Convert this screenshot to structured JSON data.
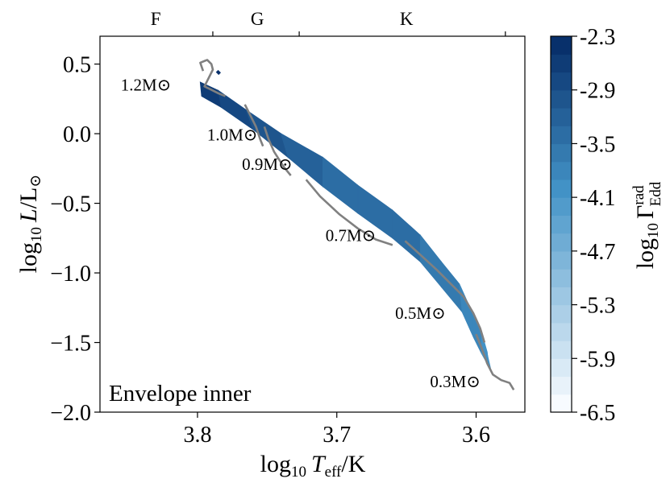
{
  "chart_data": {
    "type": "heatmap",
    "annotation": "Envelope inner",
    "xlabel_main": "log",
    "xlabel_sub": "10",
    "xlabel_var": "T",
    "xlabel_var_sub": "eff",
    "xlabel_unit": "/K",
    "ylabel_main": "log",
    "ylabel_sub": "10",
    "ylabel_var": "L",
    "ylabel_unit": "/L",
    "ylabel_sym": "⊙",
    "xlim": [
      3.87,
      3.565
    ],
    "ylim": [
      -2.0,
      0.7
    ],
    "x_axis_reversed": true,
    "x_ticks": [
      {
        "value": 3.8,
        "label": "3.8"
      },
      {
        "value": 3.7,
        "label": "3.7"
      },
      {
        "value": 3.6,
        "label": "3.6"
      }
    ],
    "y_ticks": [
      {
        "value": 0.5,
        "label": "0.5"
      },
      {
        "value": 0.0,
        "label": "0.0"
      },
      {
        "value": -0.5,
        "label": "−0.5"
      },
      {
        "value": -1.0,
        "label": "−1.0"
      },
      {
        "value": -1.5,
        "label": "−1.5"
      },
      {
        "value": -2.0,
        "label": "−2.0"
      }
    ],
    "top_axis": {
      "boundaries": [
        3.789,
        3.727,
        3.579
      ],
      "classes": [
        {
          "label": "F",
          "x": 3.83
        },
        {
          "label": "G",
          "x": 3.757
        },
        {
          "label": "K",
          "x": 3.65
        }
      ]
    },
    "colorbar": {
      "label_main": "log",
      "label_sub": "10",
      "label_var": "Γ",
      "label_sup": "rad",
      "label_sub2": "Edd",
      "range": [
        -6.5,
        -2.3
      ],
      "levels": 21,
      "ticks": [
        {
          "value": -2.3,
          "label": "-2.3"
        },
        {
          "value": -2.9,
          "label": "-2.9"
        },
        {
          "value": -3.5,
          "label": "-3.5"
        },
        {
          "value": -4.1,
          "label": "-4.1"
        },
        {
          "value": -4.7,
          "label": "-4.7"
        },
        {
          "value": -5.3,
          "label": "-5.3"
        },
        {
          "value": -5.9,
          "label": "-5.9"
        },
        {
          "value": -6.5,
          "label": "-6.5"
        }
      ],
      "cmap_low": "#f7fbff",
      "cmap_high": "#08306b"
    },
    "track_color": "#808080",
    "tracks": [
      {
        "label": "1.2M⊙",
        "mass": "1.2",
        "label_x": 3.837,
        "label_y": 0.31,
        "points": [
          [
            3.796,
            0.45
          ],
          [
            3.798,
            0.51
          ],
          [
            3.793,
            0.53
          ],
          [
            3.79,
            0.5
          ],
          [
            3.789,
            0.46
          ],
          [
            3.795,
            0.34
          ],
          [
            3.791,
            0.32
          ],
          [
            3.785,
            0.29
          ],
          [
            3.78,
            0.27
          ]
        ]
      },
      {
        "label": "1.0M⊙",
        "mass": "1.0",
        "label_x": 3.775,
        "label_y": -0.05,
        "points": [
          [
            3.766,
            0.21
          ],
          [
            3.763,
            0.15
          ],
          [
            3.758,
            0.05
          ],
          [
            3.755,
            -0.04
          ],
          [
            3.753,
            -0.09
          ]
        ]
      },
      {
        "label": "0.9M⊙",
        "mass": "0.9",
        "label_x": 3.75,
        "label_y": -0.26,
        "points": [
          [
            3.752,
            0.05
          ],
          [
            3.749,
            -0.04
          ],
          [
            3.745,
            -0.13
          ],
          [
            3.738,
            -0.24
          ],
          [
            3.733,
            -0.3
          ]
        ]
      },
      {
        "label": "0.7M⊙",
        "mass": "0.7",
        "label_x": 3.69,
        "label_y": -0.77,
        "points": [
          [
            3.722,
            -0.33
          ],
          [
            3.712,
            -0.45
          ],
          [
            3.698,
            -0.58
          ],
          [
            3.685,
            -0.68
          ],
          [
            3.672,
            -0.76
          ],
          [
            3.66,
            -0.8
          ]
        ]
      },
      {
        "label": "0.5M⊙",
        "mass": "0.5",
        "label_x": 3.64,
        "label_y": -1.33,
        "points": [
          [
            3.651,
            -0.77
          ],
          [
            3.64,
            -0.87
          ],
          [
            3.628,
            -0.98
          ],
          [
            3.618,
            -1.08
          ],
          [
            3.609,
            -1.17
          ],
          [
            3.602,
            -1.29
          ],
          [
            3.597,
            -1.4
          ],
          [
            3.594,
            -1.5
          ]
        ]
      },
      {
        "label": "0.3M⊙",
        "mass": "0.3",
        "label_x": 3.615,
        "label_y": -1.82,
        "points": [
          [
            3.6,
            -1.44
          ],
          [
            3.596,
            -1.54
          ],
          [
            3.592,
            -1.65
          ],
          [
            3.588,
            -1.73
          ],
          [
            3.582,
            -1.77
          ],
          [
            3.576,
            -1.79
          ],
          [
            3.573,
            -1.84
          ]
        ]
      }
    ],
    "band": {
      "upper": [
        [
          3.798,
          0.37
        ],
        [
          3.785,
          0.31
        ],
        [
          3.765,
          0.17
        ],
        [
          3.74,
          0.0
        ],
        [
          3.71,
          -0.17
        ],
        [
          3.685,
          -0.37
        ],
        [
          3.66,
          -0.55
        ],
        [
          3.64,
          -0.73
        ],
        [
          3.625,
          -0.92
        ],
        [
          3.612,
          -1.08
        ],
        [
          3.603,
          -1.28
        ],
        [
          3.596,
          -1.43
        ],
        [
          3.592,
          -1.57
        ],
        [
          3.589,
          -1.7
        ]
      ],
      "lower": [
        [
          3.797,
          0.27
        ],
        [
          3.783,
          0.19
        ],
        [
          3.76,
          0.03
        ],
        [
          3.735,
          -0.17
        ],
        [
          3.71,
          -0.38
        ],
        [
          3.685,
          -0.57
        ],
        [
          3.66,
          -0.75
        ],
        [
          3.64,
          -0.92
        ],
        [
          3.625,
          -1.1
        ],
        [
          3.61,
          -1.28
        ],
        [
          3.602,
          -1.46
        ],
        [
          3.596,
          -1.58
        ],
        [
          3.591,
          -1.67
        ]
      ],
      "upper_values": [
        -2.55,
        -2.75,
        -3.05,
        -3.25,
        -3.35,
        -3.4,
        -3.45,
        -3.5,
        -3.6,
        -3.7,
        -3.8,
        -3.9,
        -4.0,
        -4.1
      ],
      "lower_values": [
        -2.6,
        -2.8,
        -3.1,
        -3.3,
        -3.4,
        -3.45,
        -3.5,
        -3.55,
        -3.65,
        -3.8,
        -3.95,
        -4.05,
        -4.1
      ],
      "blip": [
        [
          3.786,
          0.45
        ],
        [
          3.784,
          0.43
        ]
      ]
    }
  }
}
